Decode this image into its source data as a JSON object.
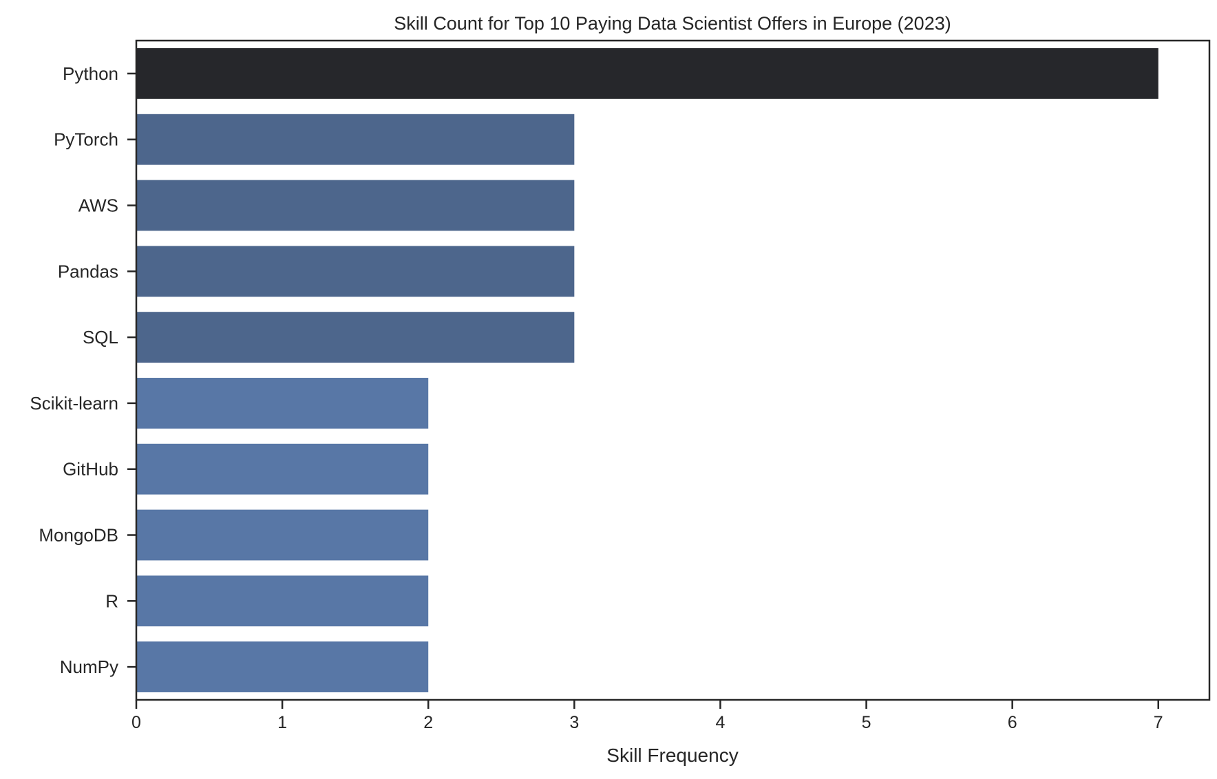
{
  "chart_data": {
    "type": "bar",
    "orientation": "horizontal",
    "title": "Skill Count for Top 10 Paying Data Scientist Offers in Europe (2023)",
    "xlabel": "Skill Frequency",
    "ylabel": "",
    "categories": [
      "Python",
      "PyTorch",
      "AWS",
      "Pandas",
      "SQL",
      "Scikit-learn",
      "GitHub",
      "MongoDB",
      "R",
      "NumPy"
    ],
    "values": [
      7,
      3,
      3,
      3,
      3,
      2,
      2,
      2,
      2,
      2
    ],
    "xlim": [
      0,
      7.35
    ],
    "xticks": [
      0,
      1,
      2,
      3,
      4,
      5,
      6,
      7
    ],
    "grid": false,
    "legend": "none",
    "colors": {
      "7": "#26272b",
      "3": "#4d668c",
      "2": "#5877a6"
    }
  }
}
